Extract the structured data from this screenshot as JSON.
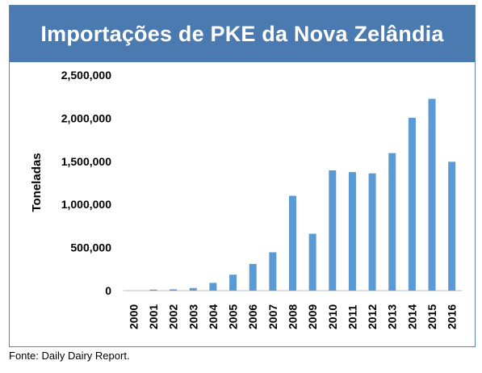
{
  "chart_data": {
    "type": "bar",
    "title": "Importações de PKE da Nova Zelândia",
    "xlabel": "",
    "ylabel": "Toneladas",
    "ylim": [
      0,
      2500000
    ],
    "yticks": [
      0,
      500000,
      1000000,
      1500000,
      2000000,
      2500000
    ],
    "ytick_labels": [
      "0",
      "500,000",
      "1,000,000",
      "1,500,000",
      "2,000,000",
      "2,500,000"
    ],
    "categories": [
      "2000",
      "2001",
      "2002",
      "2003",
      "2004",
      "2005",
      "2006",
      "2007",
      "2008",
      "2009",
      "2010",
      "2011",
      "2012",
      "2013",
      "2014",
      "2015",
      "2016"
    ],
    "values": [
      0,
      12000,
      15000,
      30000,
      90000,
      185000,
      310000,
      445000,
      1100000,
      660000,
      1395000,
      1375000,
      1360000,
      1595000,
      2005000,
      2225000,
      1495000
    ],
    "bar_color": "#5b9bd5",
    "grid": false,
    "legend": "none"
  },
  "source": "Fonte: Daily Dairy Report."
}
